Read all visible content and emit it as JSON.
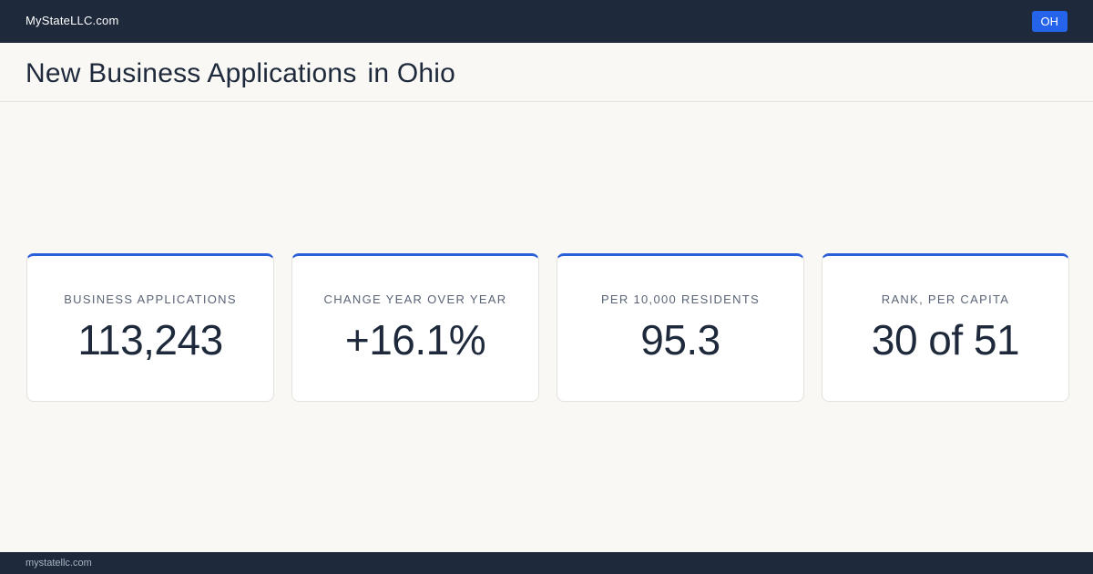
{
  "header": {
    "brand": "MyStateLLC.com",
    "badge": "OH"
  },
  "title": {
    "main": "New Business Applications",
    "place": "in Ohio"
  },
  "cards": [
    {
      "label": "BUSINESS APPLICATIONS",
      "value": "113,243"
    },
    {
      "label": "CHANGE YEAR OVER YEAR",
      "value": "+16.1%"
    },
    {
      "label": "PER 10,000 RESIDENTS",
      "value": "95.3"
    },
    {
      "label": "RANK, PER CAPITA",
      "value": "30 of 51"
    }
  ],
  "footer": {
    "site": "mystatellc.com"
  }
}
